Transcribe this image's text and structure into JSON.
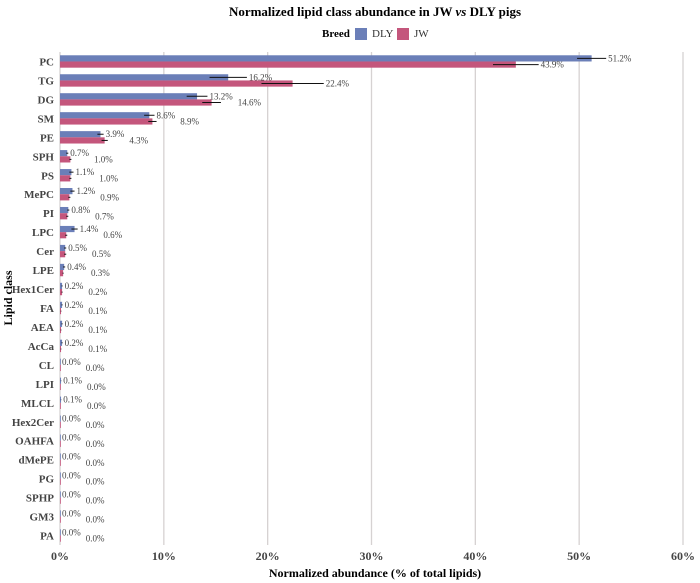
{
  "chart_data": {
    "type": "bar",
    "orientation": "horizontal",
    "title": "Normalized lipid class abundance in JW vs DLY pigs",
    "title_parts": [
      "Normalized lipid class abundance in JW ",
      "vs",
      " DLY pigs"
    ],
    "xlabel": "Normalized abundance (% of total lipids)",
    "ylabel": "Lipid class",
    "xlim": [
      0,
      60
    ],
    "xticks": [
      0,
      10,
      20,
      30,
      40,
      50,
      60
    ],
    "xtick_labels": [
      "0%",
      "10%",
      "20%",
      "30%",
      "40%",
      "50%",
      "60%"
    ],
    "grid": "vertical",
    "legend": {
      "title": "Breed",
      "placement": "top",
      "entries": [
        "DLY",
        "JW"
      ]
    },
    "categories": [
      "PC",
      "TG",
      "DG",
      "SM",
      "PE",
      "SPH",
      "PS",
      "MePC",
      "PI",
      "LPC",
      "Cer",
      "LPE",
      "Hex1Cer",
      "FA",
      "AEA",
      "AcCa",
      "CL",
      "LPI",
      "MLCL",
      "Hex2Cer",
      "OAHFA",
      "dMePE",
      "PG",
      "SPHP",
      "GM3",
      "PA"
    ],
    "series": [
      {
        "name": "DLY",
        "color": "#6b7fb8",
        "values": [
          51.2,
          16.2,
          13.2,
          8.6,
          3.9,
          0.7,
          1.1,
          1.2,
          0.8,
          1.4,
          0.5,
          0.4,
          0.2,
          0.2,
          0.2,
          0.2,
          0.0,
          0.1,
          0.1,
          0.0,
          0.0,
          0.0,
          0.0,
          0.0,
          0.0,
          0.0
        ],
        "errors": [
          1.4,
          1.8,
          1.0,
          0.5,
          0.3,
          0.1,
          0.2,
          0.2,
          0.1,
          0.3,
          0.1,
          0.1,
          0.05,
          0.05,
          0.05,
          0.05,
          0,
          0.02,
          0.02,
          0,
          0,
          0,
          0,
          0,
          0,
          0
        ]
      },
      {
        "name": "JW",
        "color": "#c4567c",
        "values": [
          43.9,
          22.4,
          14.6,
          8.9,
          4.3,
          1.0,
          1.0,
          0.9,
          0.7,
          0.6,
          0.5,
          0.3,
          0.2,
          0.1,
          0.1,
          0.1,
          0.0,
          0.0,
          0.0,
          0.0,
          0.0,
          0.0,
          0.0,
          0.0,
          0.0,
          0.0
        ],
        "errors": [
          2.2,
          3.0,
          0.9,
          0.4,
          0.3,
          0.1,
          0.1,
          0.1,
          0.1,
          0.1,
          0.1,
          0.05,
          0.05,
          0.03,
          0.03,
          0.03,
          0,
          0,
          0,
          0,
          0,
          0,
          0,
          0,
          0,
          0
        ]
      }
    ]
  }
}
